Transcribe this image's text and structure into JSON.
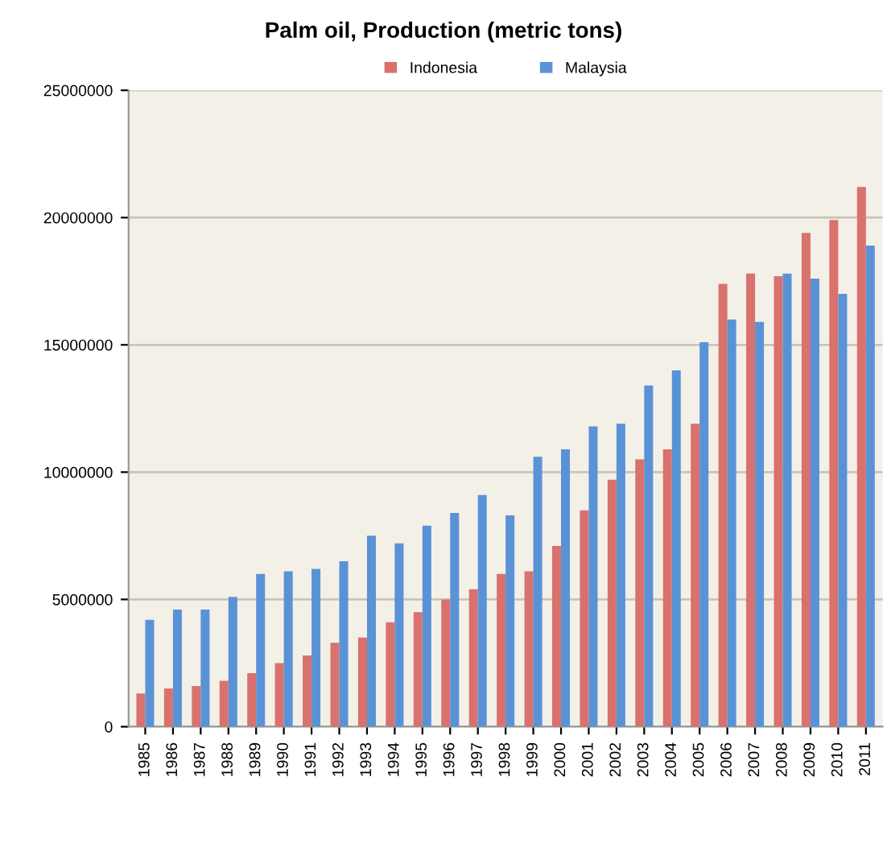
{
  "chart_data": {
    "type": "bar",
    "title": "Palm oil, Production (metric tons)",
    "categories": [
      "1985",
      "1986",
      "1987",
      "1988",
      "1989",
      "1990",
      "1991",
      "1992",
      "1993",
      "1994",
      "1995",
      "1996",
      "1997",
      "1998",
      "1999",
      "2000",
      "2001",
      "2002",
      "2003",
      "2004",
      "2005",
      "2006",
      "2007",
      "2008",
      "2009",
      "2010",
      "2011"
    ],
    "series": [
      {
        "name": "Indonesia",
        "color": "#d9716d",
        "values": [
          1300000.0,
          1500000.0,
          1600000.0,
          1800000.0,
          2100000.0,
          2500000.0,
          2800000.0,
          3300000.0,
          3500000.0,
          4100000.0,
          4500000.0,
          5000000.0,
          5400000.0,
          6000000.0,
          6100000.0,
          7100000.0,
          8500000.0,
          9700000.0,
          10500000.0,
          10900000.0,
          11900000.0,
          17400000.0,
          17800000.0,
          17700000.0,
          19400000.0,
          19900000.0,
          21200000.0
        ]
      },
      {
        "name": "Malaysia",
        "color": "#5a92d6",
        "values": [
          4200000.0,
          4600000.0,
          4600000.0,
          5100000.0,
          6000000.0,
          6100000.0,
          6200000.0,
          6500000.0,
          7500000.0,
          7200000.0,
          7900000.0,
          8400000.0,
          9100000.0,
          8300000.0,
          10600000.0,
          10900000.0,
          11800000.0,
          11900000.0,
          13400000.0,
          14000000.0,
          15100000.0,
          16000000.0,
          15900000.0,
          17800000.0,
          17600000.0,
          17000000.0,
          18900000.0
        ]
      }
    ],
    "ylim": [
      0,
      25000000
    ],
    "yticks": [
      0,
      5000000,
      10000000,
      15000000,
      20000000,
      25000000
    ],
    "grid": "y",
    "legend": "top"
  }
}
